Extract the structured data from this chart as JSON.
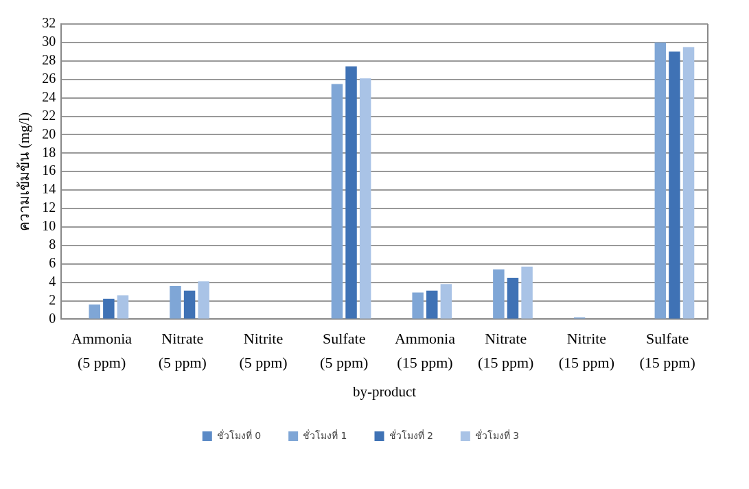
{
  "chart_data": {
    "type": "bar",
    "xlabel": "by-product",
    "ylabel": "ความเข้มข้น (mg/l)",
    "categories": [
      "Ammonia (5 ppm)",
      "Nitrate (5 ppm)",
      "Nitrite (5 ppm)",
      "Sulfate (5 ppm)",
      "Ammonia (15 ppm)",
      "Nitrate (15 ppm)",
      "Nitrite (15 ppm)",
      "Sulfate (15 ppm)"
    ],
    "series": [
      {
        "name": "ชั่วโมงที่ 0",
        "color": "#5b8ac6",
        "values": [
          0,
          0,
          0,
          0,
          0,
          0,
          0,
          0
        ]
      },
      {
        "name": "ชั่วโมงที่ 1",
        "color": "#7fa6d6",
        "values": [
          1.6,
          3.6,
          null,
          25.5,
          2.9,
          5.4,
          0.2,
          30.0
        ]
      },
      {
        "name": "ชั่วโมงที่ 2",
        "color": "#3f72b5",
        "values": [
          2.2,
          3.1,
          null,
          27.4,
          3.1,
          4.5,
          null,
          29.0
        ]
      },
      {
        "name": "ชั่วโมงที่ 3",
        "color": "#a9c3e6",
        "values": [
          2.6,
          4.1,
          null,
          26.1,
          3.8,
          5.7,
          null,
          29.5
        ]
      }
    ],
    "ylim": [
      0,
      32
    ],
    "yticks": [
      0,
      2,
      4,
      6,
      8,
      10,
      12,
      14,
      16,
      18,
      20,
      22,
      24,
      26,
      28,
      30,
      32
    ],
    "grid": "y",
    "legend": "bottom"
  }
}
